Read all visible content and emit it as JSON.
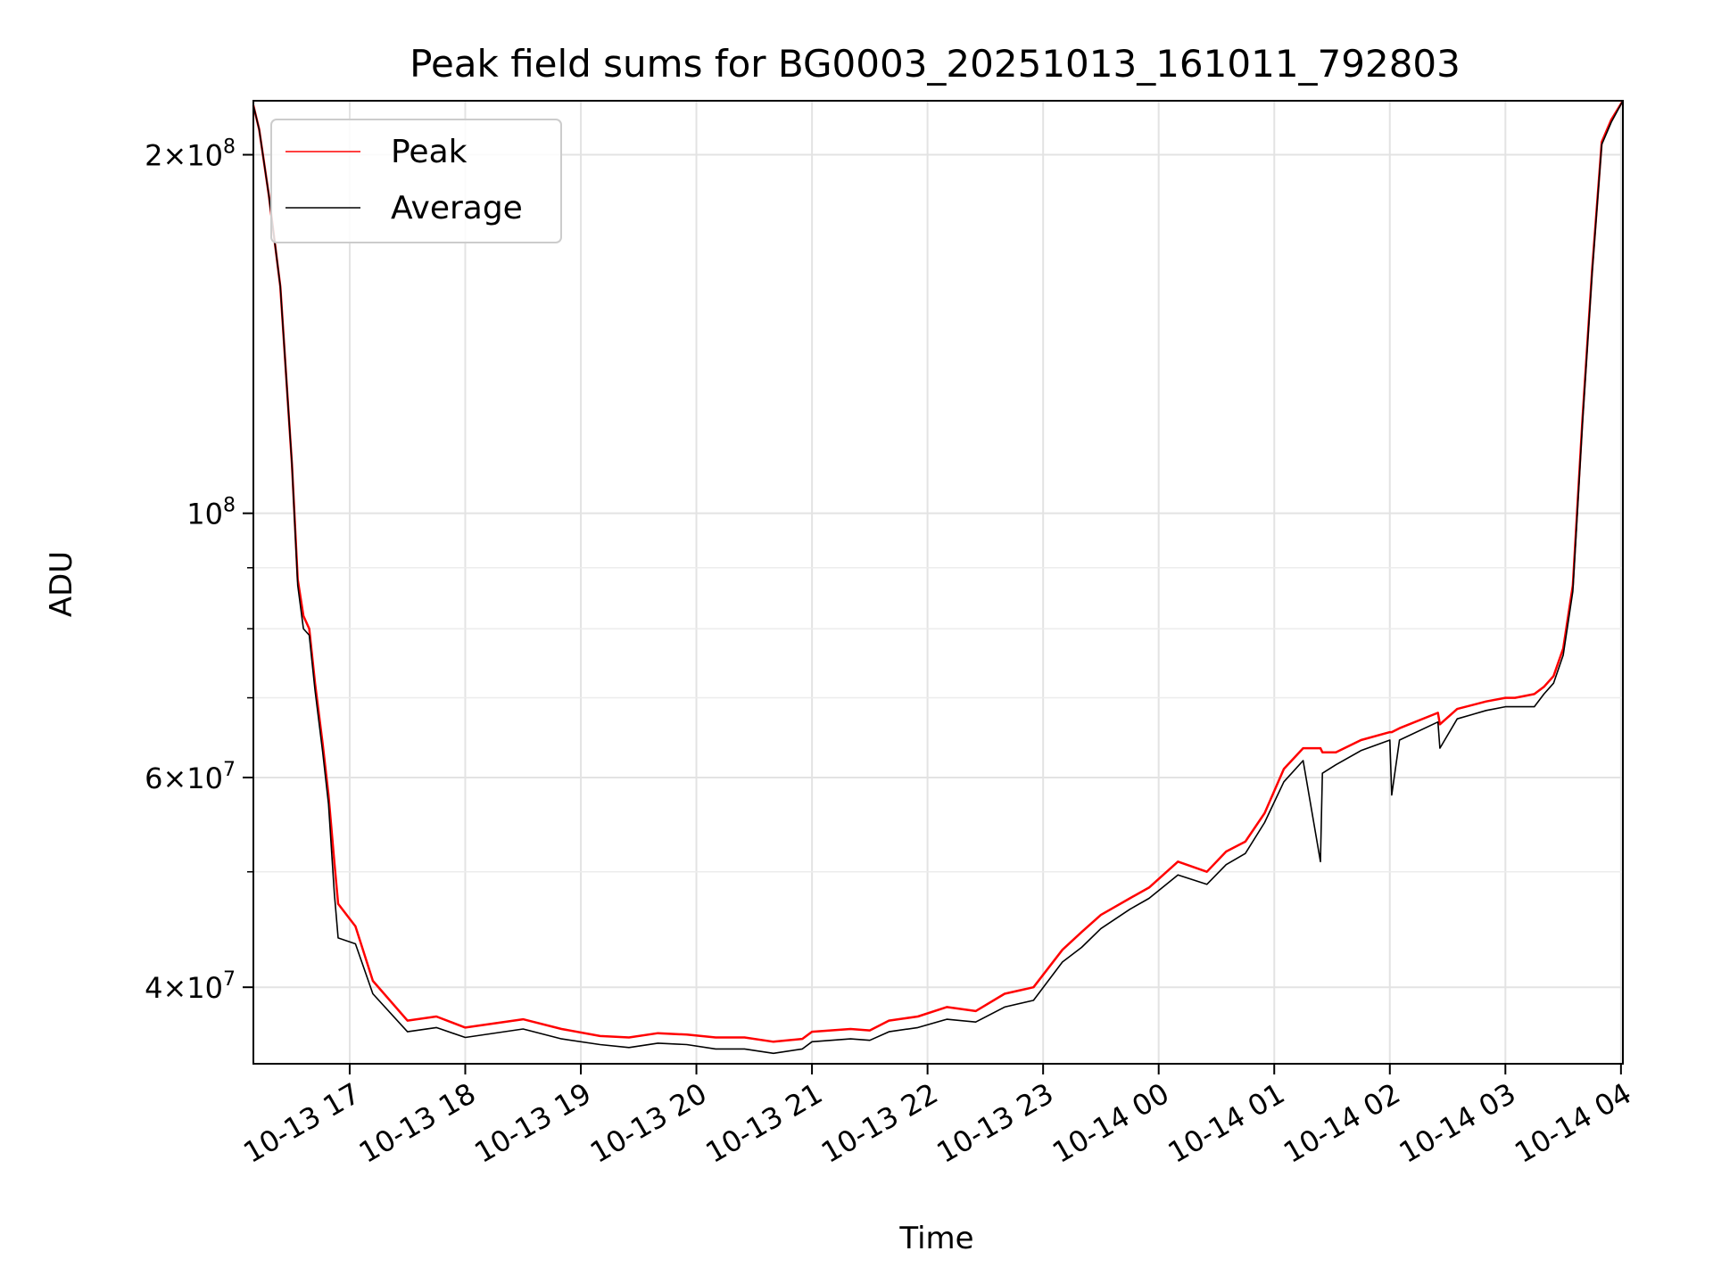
{
  "chart_data": {
    "type": "line",
    "title": "Peak field sums for BG0003_20251013_161011_792803",
    "xlabel": "Time",
    "ylabel": "ADU",
    "yscale": "log",
    "ylim": [
      34500000,
      222000000
    ],
    "xlim": [
      "2025-10-13 16:10",
      "2025-10-14 04:01"
    ],
    "grid": true,
    "legend_position": "top-left",
    "x_tick_labels": [
      "10-13 17",
      "10-13 18",
      "10-13 19",
      "10-13 20",
      "10-13 21",
      "10-13 22",
      "10-13 23",
      "10-14 00",
      "10-14 01",
      "10-14 02",
      "10-14 03",
      "10-14 04"
    ],
    "x_tick_values": [
      "2025-10-13 17:00",
      "2025-10-13 18:00",
      "2025-10-13 19:00",
      "2025-10-13 20:00",
      "2025-10-13 21:00",
      "2025-10-13 22:00",
      "2025-10-13 23:00",
      "2025-10-14 00:00",
      "2025-10-14 01:00",
      "2025-10-14 02:00",
      "2025-10-14 03:00",
      "2025-10-14 04:00"
    ],
    "y_major_ticks": [
      {
        "value": 40000000,
        "mantissa": "4",
        "exponent": "7"
      },
      {
        "value": 60000000,
        "mantissa": "6",
        "exponent": "7"
      },
      {
        "value": 100000000,
        "mantissa": "",
        "exponent": "8"
      },
      {
        "value": 200000000,
        "mantissa": "2",
        "exponent": "8"
      }
    ],
    "y_minor_ticks": [
      50000000,
      70000000,
      80000000,
      90000000
    ],
    "series": [
      {
        "name": "Peak",
        "color": "#ff0000",
        "x": [
          "2025-10-13 16:10",
          "2025-10-13 16:13",
          "2025-10-13 16:18",
          "2025-10-13 16:24",
          "2025-10-13 16:30",
          "2025-10-13 16:33",
          "2025-10-13 16:36",
          "2025-10-13 16:39",
          "2025-10-13 16:42",
          "2025-10-13 16:46",
          "2025-10-13 16:49",
          "2025-10-13 16:52",
          "2025-10-13 16:54",
          "2025-10-13 17:03",
          "2025-10-13 17:12",
          "2025-10-13 17:30",
          "2025-10-13 17:45",
          "2025-10-13 18:00",
          "2025-10-13 18:30",
          "2025-10-13 18:50",
          "2025-10-13 19:10",
          "2025-10-13 19:25",
          "2025-10-13 19:40",
          "2025-10-13 19:55",
          "2025-10-13 20:10",
          "2025-10-13 20:25",
          "2025-10-13 20:40",
          "2025-10-13 20:55",
          "2025-10-13 21:00",
          "2025-10-13 21:20",
          "2025-10-13 21:30",
          "2025-10-13 21:40",
          "2025-10-13 21:55",
          "2025-10-13 22:10",
          "2025-10-13 22:25",
          "2025-10-13 22:40",
          "2025-10-13 22:55",
          "2025-10-13 23:10",
          "2025-10-13 23:20",
          "2025-10-13 23:30",
          "2025-10-13 23:45",
          "2025-10-13 23:55",
          "2025-10-14 00:10",
          "2025-10-14 00:25",
          "2025-10-14 00:35",
          "2025-10-14 00:45",
          "2025-10-14 00:55",
          "2025-10-14 01:05",
          "2025-10-14 01:15",
          "2025-10-14 01:24",
          "2025-10-14 01:25",
          "2025-10-14 01:32",
          "2025-10-14 01:45",
          "2025-10-14 02:00",
          "2025-10-14 02:01",
          "2025-10-14 02:05",
          "2025-10-14 02:25",
          "2025-10-14 02:26",
          "2025-10-14 02:35",
          "2025-10-14 02:50",
          "2025-10-14 03:00",
          "2025-10-14 03:05",
          "2025-10-14 03:15",
          "2025-10-14 03:20",
          "2025-10-14 03:25",
          "2025-10-14 03:30",
          "2025-10-14 03:35",
          "2025-10-14 03:40",
          "2025-10-14 03:45",
          "2025-10-14 03:50",
          "2025-10-14 03:55",
          "2025-10-14 04:01"
        ],
        "values": [
          220000000,
          210000000,
          185000000,
          155000000,
          110000000,
          88000000,
          82000000,
          80000000,
          72000000,
          64000000,
          58000000,
          51000000,
          47000000,
          45000000,
          40500000,
          37500000,
          37800000,
          37000000,
          37600000,
          36900000,
          36400000,
          36300000,
          36600000,
          36500000,
          36300000,
          36300000,
          36000000,
          36200000,
          36700000,
          36900000,
          36800000,
          37500000,
          37800000,
          38500000,
          38200000,
          39500000,
          40000000,
          43000000,
          44500000,
          46000000,
          47500000,
          48500000,
          51000000,
          50000000,
          52000000,
          53000000,
          56000000,
          61000000,
          63500000,
          63500000,
          63000000,
          63000000,
          64500000,
          65500000,
          65500000,
          66000000,
          68000000,
          66500000,
          68500000,
          69500000,
          70000000,
          70000000,
          70500000,
          71500000,
          73000000,
          77000000,
          87000000,
          120000000,
          160000000,
          205000000,
          214000000,
          222000000
        ]
      },
      {
        "name": "Average",
        "color": "#000000",
        "x": [
          "2025-10-13 16:10",
          "2025-10-13 16:13",
          "2025-10-13 16:18",
          "2025-10-13 16:24",
          "2025-10-13 16:30",
          "2025-10-13 16:33",
          "2025-10-13 16:36",
          "2025-10-13 16:39",
          "2025-10-13 16:42",
          "2025-10-13 16:46",
          "2025-10-13 16:49",
          "2025-10-13 16:52",
          "2025-10-13 16:54",
          "2025-10-13 17:03",
          "2025-10-13 17:12",
          "2025-10-13 17:30",
          "2025-10-13 17:45",
          "2025-10-13 18:00",
          "2025-10-13 18:30",
          "2025-10-13 18:50",
          "2025-10-13 19:10",
          "2025-10-13 19:25",
          "2025-10-13 19:40",
          "2025-10-13 19:55",
          "2025-10-13 20:10",
          "2025-10-13 20:25",
          "2025-10-13 20:40",
          "2025-10-13 20:55",
          "2025-10-13 21:00",
          "2025-10-13 21:20",
          "2025-10-13 21:30",
          "2025-10-13 21:40",
          "2025-10-13 21:55",
          "2025-10-13 22:10",
          "2025-10-13 22:25",
          "2025-10-13 22:40",
          "2025-10-13 22:55",
          "2025-10-13 23:10",
          "2025-10-13 23:20",
          "2025-10-13 23:30",
          "2025-10-13 23:45",
          "2025-10-13 23:55",
          "2025-10-14 00:10",
          "2025-10-14 00:25",
          "2025-10-14 00:35",
          "2025-10-14 00:45",
          "2025-10-14 00:55",
          "2025-10-14 01:05",
          "2025-10-14 01:15",
          "2025-10-14 01:24",
          "2025-10-14 01:25",
          "2025-10-14 01:32",
          "2025-10-14 01:45",
          "2025-10-14 02:00",
          "2025-10-14 02:01",
          "2025-10-14 02:05",
          "2025-10-14 02:25",
          "2025-10-14 02:26",
          "2025-10-14 02:35",
          "2025-10-14 02:50",
          "2025-10-14 03:00",
          "2025-10-14 03:05",
          "2025-10-14 03:15",
          "2025-10-14 03:20",
          "2025-10-14 03:25",
          "2025-10-14 03:30",
          "2025-10-14 03:35",
          "2025-10-14 03:40",
          "2025-10-14 03:45",
          "2025-10-14 03:50",
          "2025-10-14 03:55",
          "2025-10-14 04:01"
        ],
        "values": [
          220000000,
          210000000,
          185000000,
          155000000,
          110000000,
          87000000,
          80000000,
          79000000,
          71000000,
          63000000,
          57000000,
          48000000,
          44000000,
          43500000,
          39500000,
          36700000,
          37000000,
          36300000,
          36900000,
          36200000,
          35800000,
          35600000,
          35900000,
          35800000,
          35500000,
          35500000,
          35200000,
          35500000,
          36000000,
          36200000,
          36100000,
          36700000,
          37000000,
          37600000,
          37400000,
          38500000,
          39000000,
          42000000,
          43200000,
          44800000,
          46500000,
          47500000,
          49700000,
          48800000,
          50700000,
          51800000,
          55000000,
          59500000,
          62000000,
          51000000,
          60500000,
          61500000,
          63200000,
          64500000,
          58000000,
          64500000,
          66800000,
          63500000,
          67200000,
          68300000,
          68800000,
          68800000,
          68800000,
          70500000,
          72000000,
          76000000,
          86000000,
          119000000,
          159000000,
          204000000,
          213000000,
          222000000
        ]
      }
    ]
  }
}
